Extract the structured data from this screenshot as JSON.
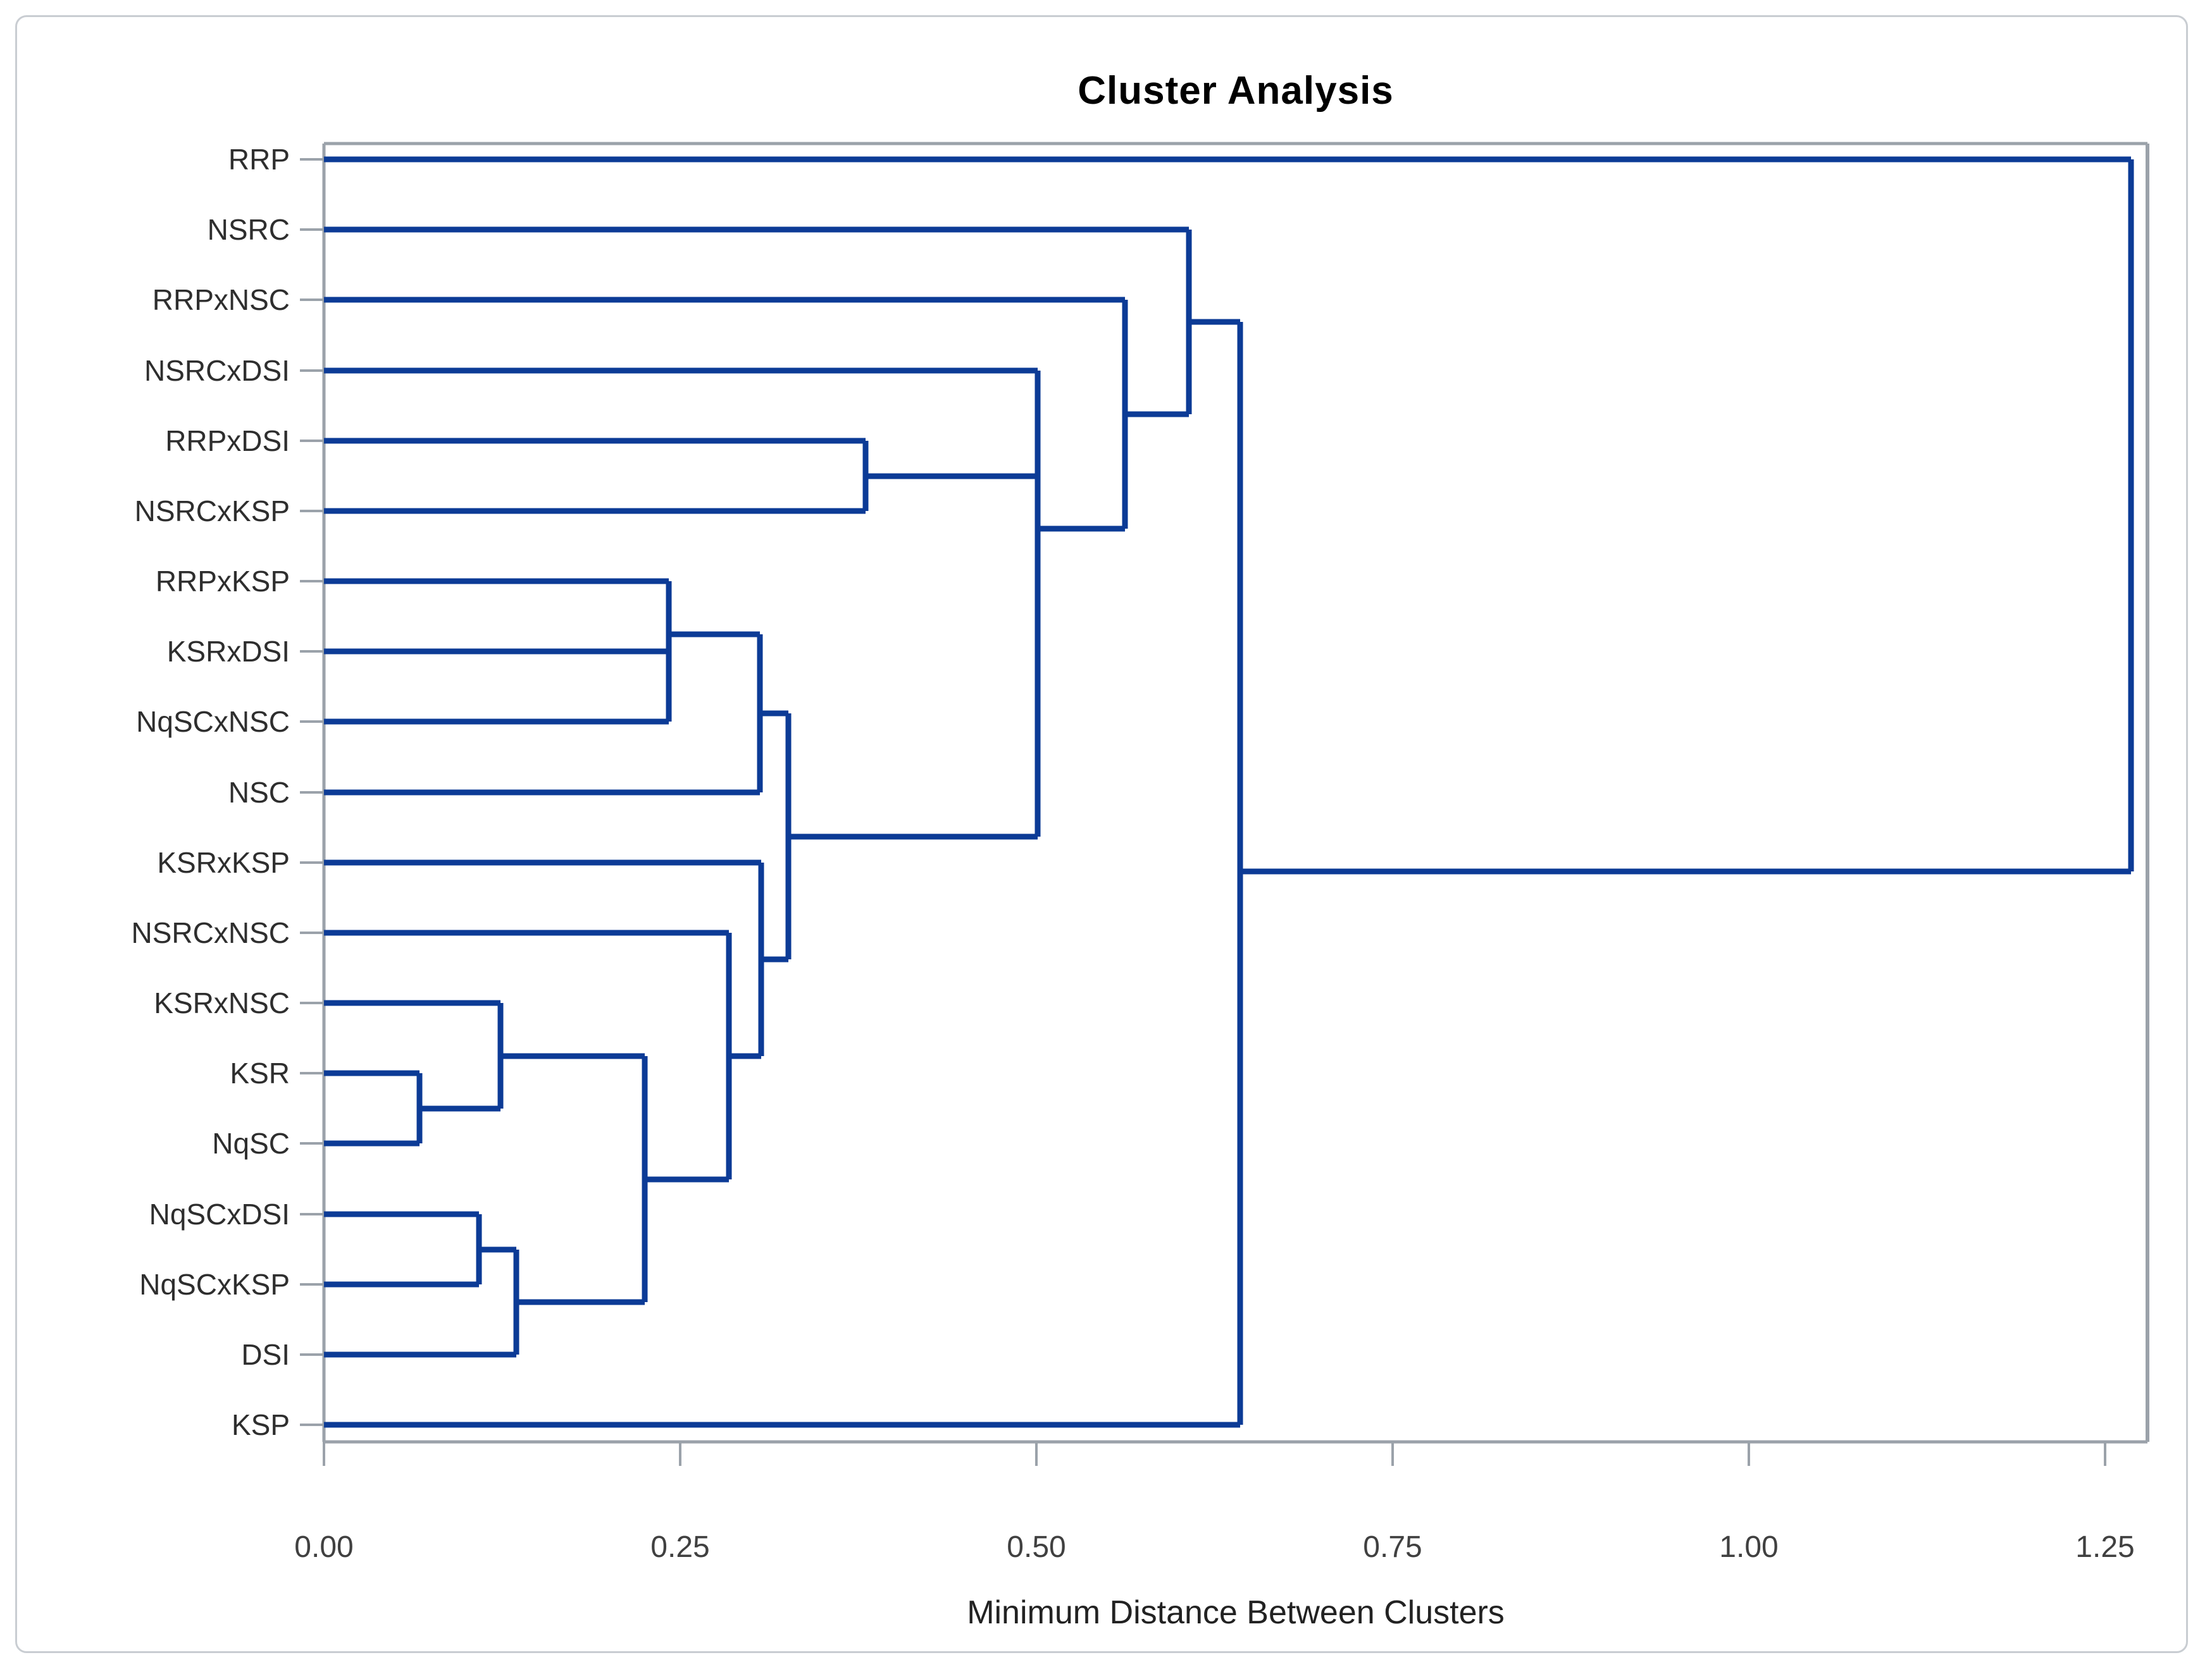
{
  "title": "Cluster Analysis",
  "axis": {
    "label": "Minimum Distance Between Clusters",
    "tick_labels": [
      "0.00",
      "0.25",
      "0.50",
      "0.75",
      "1.00",
      "1.25"
    ],
    "tick_values": [
      0,
      0.25,
      0.5,
      0.75,
      1.0,
      1.25
    ],
    "range": [
      0,
      1.28
    ]
  },
  "colors": {
    "line": "#0c3b96",
    "frame": "#9ba2aa",
    "tick_text": "#404040",
    "leaf_text": "#2e2e2e"
  },
  "chart_data": {
    "type": "dendrogram",
    "orientation": "horizontal, leaves at left, root at right",
    "title": "Cluster Analysis",
    "xlabel": "Minimum Distance Between Clusters",
    "xlim": [
      0,
      1.28
    ],
    "grid": false,
    "leaves": [
      "RRP",
      "NSRC",
      "RRPxNSC",
      "NSRCxDSI",
      "RRPxDSI",
      "NSRCxKSP",
      "RRPxKSP",
      "KSRxDSI",
      "NqSCxNSC",
      "NSC",
      "KSRxKSP",
      "NSRCxNSC",
      "KSRxNSC",
      "KSR",
      "NqSC",
      "NqSCxDSI",
      "NqSCxKSP",
      "DSI",
      "KSP"
    ],
    "merges": [
      {
        "id": "L1",
        "children": [
          "KSR",
          "NqSC"
        ],
        "distance": 0.067
      },
      {
        "id": "L3",
        "children": [
          "NqSCxDSI",
          "NqSCxKSP"
        ],
        "distance": 0.109
      },
      {
        "id": "L2",
        "children": [
          "KSRxNSC",
          "L1"
        ],
        "distance": 0.124
      },
      {
        "id": "L4",
        "children": [
          "L3",
          "DSI"
        ],
        "distance": 0.135
      },
      {
        "id": "L5",
        "children": [
          "L2",
          "L4"
        ],
        "distance": 0.225
      },
      {
        "id": "A3",
        "children": [
          "RRPxKSP",
          "KSRxDSI",
          "NqSCxNSC"
        ],
        "distance": 0.242,
        "out_y": 1003
      },
      {
        "id": "L6",
        "children": [
          "NSRCxNSC",
          "L5"
        ],
        "distance": 0.284
      },
      {
        "id": "B",
        "children": [
          "A3",
          "NSC"
        ],
        "distance": 0.306
      },
      {
        "id": "W",
        "children": [
          "KSRxKSP",
          "L6"
        ],
        "distance": 0.307
      },
      {
        "id": "M9",
        "children": [
          "B",
          "W"
        ],
        "distance": 0.326
      },
      {
        "id": "T1",
        "children": [
          "RRPxDSI",
          "NSRCxKSP"
        ],
        "distance": 0.38
      },
      {
        "id": "T2J1",
        "children": [
          "NSRCxDSI",
          "T1",
          "M9"
        ],
        "distance": 0.501,
        "out_y": 836
      },
      {
        "id": "T3",
        "children": [
          "RRPxNSC",
          "T2J1"
        ],
        "distance": 0.562
      },
      {
        "id": "T4",
        "children": [
          "NSRC",
          "T3"
        ],
        "distance": 0.607
      },
      {
        "id": "J2",
        "children": [
          "T4",
          "KSP"
        ],
        "distance": 0.643,
        "out_y": 1378
      },
      {
        "id": "ROOT",
        "children": [
          "RRP",
          "J2"
        ],
        "distance": 1.268
      }
    ]
  }
}
